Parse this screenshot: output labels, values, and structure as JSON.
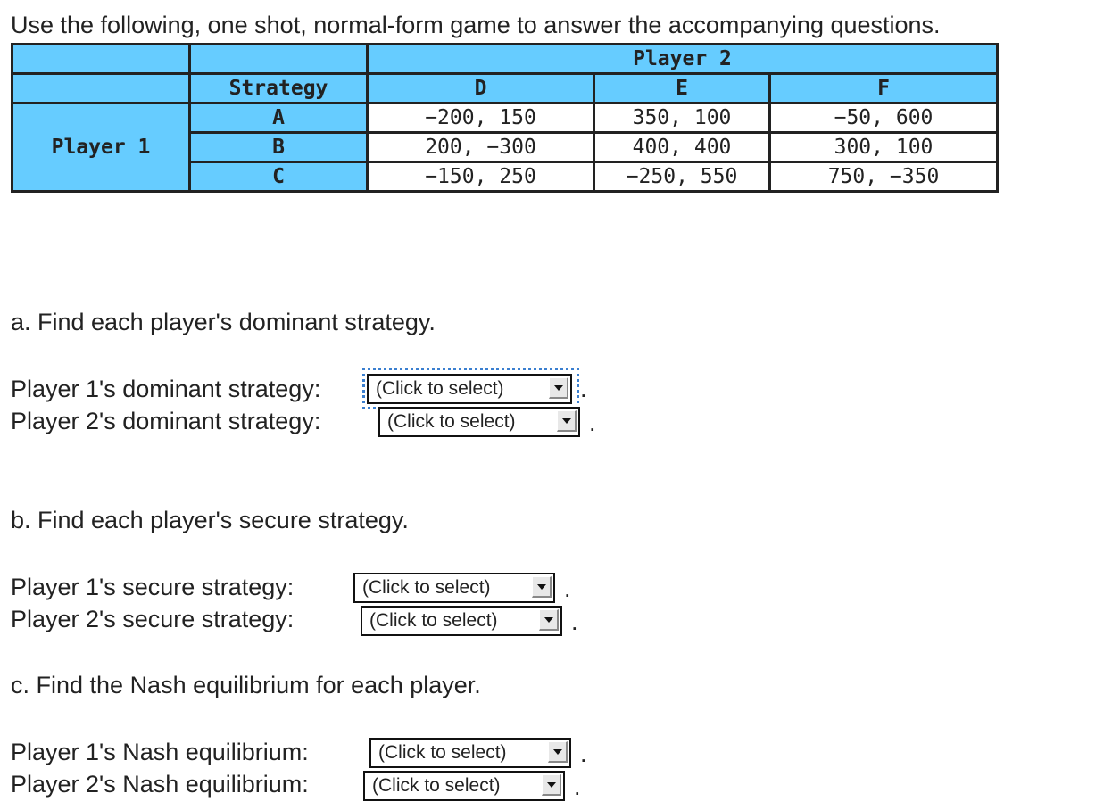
{
  "intro": "Use the following, one shot, normal-form game to answer the accompanying questions.",
  "table": {
    "player2": "Player 2",
    "player1": "Player 1",
    "strategy_header": "Strategy",
    "columns": [
      "D",
      "E",
      "F"
    ],
    "rows": [
      {
        "strategy": "A",
        "cells": [
          "−200, 150",
          "350, 100",
          "−50, 600"
        ]
      },
      {
        "strategy": "B",
        "cells": [
          "200, −300",
          "400, 400",
          "300, 100"
        ]
      },
      {
        "strategy": "C",
        "cells": [
          "−150, 250",
          "−250, 550",
          "750, −350"
        ]
      }
    ],
    "header_color": "#66ccff"
  },
  "questions": {
    "a": {
      "title": "a. Find each player's dominant strategy.",
      "p1": "Player 1's dominant strategy:",
      "p2": "Player 2's dominant strategy:"
    },
    "b": {
      "title": "b. Find each player's secure strategy.",
      "p1": "Player 1's secure strategy:",
      "p2": "Player 2's secure strategy:"
    },
    "c": {
      "title": "c. Find the Nash equilibrium for each player.",
      "p1": "Player 1's Nash equilibrium:",
      "p2": "Player 2's Nash equilibrium:"
    }
  },
  "select_placeholder": "(Click to select)",
  "period": "."
}
